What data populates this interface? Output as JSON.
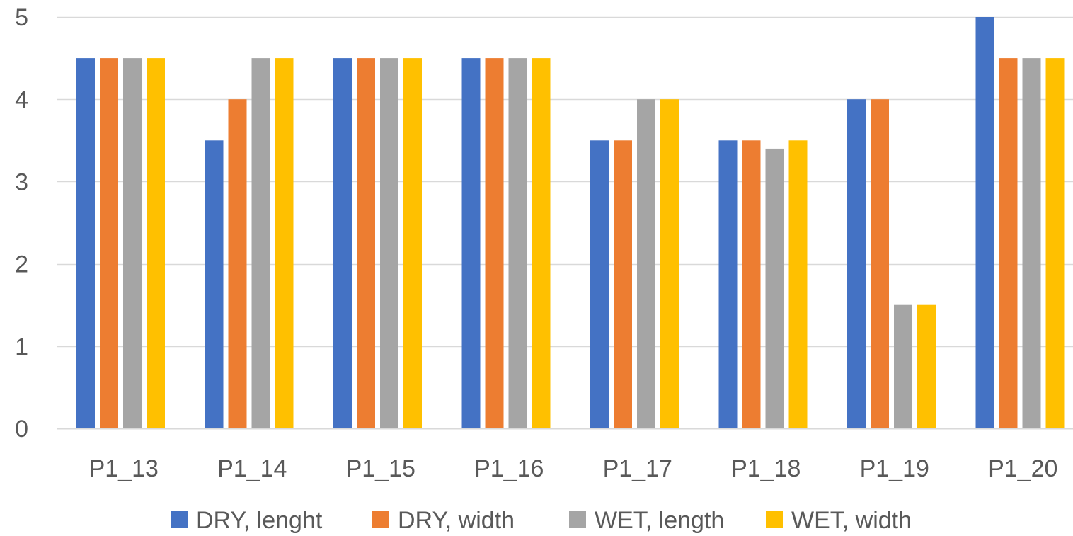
{
  "chart_data": {
    "type": "bar",
    "title": "",
    "xlabel": "",
    "ylabel": "",
    "categories": [
      "P1_13",
      "P1_14",
      "P1_15",
      "P1_16",
      "P1_17",
      "P1_18",
      "P1_19",
      "P1_20"
    ],
    "series": [
      {
        "name": "DRY, lenght",
        "color": "#4472C4",
        "values": [
          4.5,
          3.5,
          4.5,
          4.5,
          3.5,
          3.5,
          4.0,
          5.0
        ]
      },
      {
        "name": "DRY, width",
        "color": "#ED7D31",
        "values": [
          4.5,
          4.0,
          4.5,
          4.5,
          3.5,
          3.5,
          4.0,
          4.5
        ]
      },
      {
        "name": "WET, length",
        "color": "#A5A5A5",
        "values": [
          4.5,
          4.5,
          4.5,
          4.5,
          4.0,
          3.4,
          1.5,
          4.5
        ]
      },
      {
        "name": "WET, width",
        "color": "#FFC000",
        "values": [
          4.5,
          4.5,
          4.5,
          4.5,
          4.0,
          3.5,
          1.5,
          4.5
        ]
      }
    ],
    "ylim": [
      0,
      5
    ],
    "yticks": [
      0,
      1,
      2,
      3,
      4,
      5
    ],
    "grid": true,
    "legend_position": "bottom"
  }
}
